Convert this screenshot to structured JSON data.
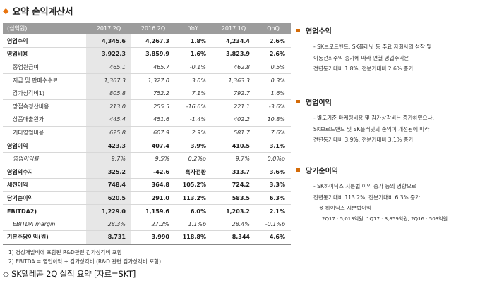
{
  "title": {
    "bullet": "◆",
    "text": "요약 손익계산서"
  },
  "table": {
    "headers": [
      "(십억원)",
      "2017 2Q",
      "2016 2Q",
      "YoY",
      "2017 1Q",
      "QoQ"
    ],
    "rows": [
      [
        "영업수익",
        "4,345.6",
        "4,267.3",
        "1.8%",
        "4,234.4",
        "2.6%"
      ],
      [
        "영업비용",
        "3,922.3",
        "3,859.9",
        "1.6%",
        "3,823.9",
        "2.6%"
      ],
      [
        "종업원급여",
        "465.1",
        "465.7",
        "-0.1%",
        "462.8",
        "0.5%"
      ],
      [
        "지급 및 판매수수료",
        "1,367.3",
        "1,327.0",
        "3.0%",
        "1,363.3",
        "0.3%"
      ],
      [
        "감가상각비1)",
        "805.8",
        "752.2",
        "7.1%",
        "792.7",
        "1.6%"
      ],
      [
        "망접속정산비용",
        "213.0",
        "255.5",
        "-16.6%",
        "221.1",
        "-3.6%"
      ],
      [
        "상품매출원가",
        "445.4",
        "451.6",
        "-1.4%",
        "402.2",
        "10.8%"
      ],
      [
        "기타영업비용",
        "625.8",
        "607.9",
        "2.9%",
        "581.7",
        "7.6%"
      ],
      [
        "영업이익",
        "423.3",
        "407.4",
        "3.9%",
        "410.5",
        "3.1%"
      ],
      [
        "영업이익률",
        "9.7%",
        "9.5%",
        "0.2%p",
        "9.7%",
        "0.0%p"
      ],
      [
        "영업외수지",
        "325.2",
        "-42.6",
        "흑자전환",
        "313.7",
        "3.6%"
      ],
      [
        "세전이익",
        "748.4",
        "364.8",
        "105.2%",
        "724.2",
        "3.3%"
      ],
      [
        "당기순이익",
        "620.5",
        "291.0",
        "113.2%",
        "583.5",
        "6.3%"
      ],
      [
        "EBITDA2)",
        "1,229.0",
        "1,159.6",
        "6.0%",
        "1,203.2",
        "2.1%"
      ],
      [
        "EBITDA margin",
        "28.3%",
        "27.2%",
        "1.1%p",
        "28.4%",
        "-0.1%p"
      ],
      [
        "기본주당이익(원)",
        "8,731",
        "3,990",
        "118.8%",
        "8,344",
        "4.6%"
      ]
    ]
  },
  "notes": [
    "1) 경상개발비에 포함된 R&D관련 감가상각비 포함",
    "2) EBITDA = 영업이익 + 감가상각비 (R&D 관련 감가상각비 포함)"
  ],
  "caption": "◇ SK텔레콤 2Q 실적 요약 [자료=SKT]",
  "sections": [
    {
      "heading": "영업수익",
      "lines": [
        "- SK브로드밴드, SK플래닛 등 주요 자회사의 성장 및",
        "이동전화수익 증가에 따라 연결 영업수익은",
        "전년동기대비 1.8%, 전분기대비 2.6% 증가"
      ]
    },
    {
      "heading": "영업이익",
      "lines": [
        "- 별도기준 마케팅비용 및 감가상각비는 증가하였으나,",
        "SK브로드밴드 및 SK플래닛의 손익이 개선됨에 따라",
        "전년동기대비 3.9%, 전분기대비 3.1% 증가"
      ]
    },
    {
      "heading": "당기순이익",
      "lines": [
        "- SK하이닉스 지분법 이익 증가 등의 영향으로",
        "전년동기대비 113.2%, 전분기대비 6.3% 증가"
      ],
      "note": "※ 하이닉스 지분법이익",
      "detail": "2Q17 : 5,013억원, 1Q17 : 3,859억원, 2Q16 : 503억원"
    }
  ],
  "colors": {
    "accent": "#d46b08",
    "header_bg": "#9c9c9c",
    "col_highlight": "#e7e7e7"
  }
}
